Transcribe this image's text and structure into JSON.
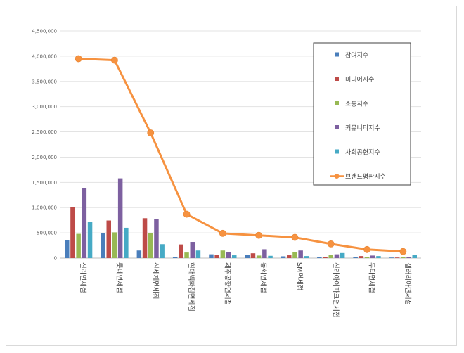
{
  "chart_data": {
    "type": "bar",
    "categories": [
      "신라면세점",
      "롯데면세점",
      "신세계면세점",
      "현대백화점면세점",
      "제주공항면세점",
      "동화면세점",
      "SM면세점",
      "신라아이파크면세점",
      "두타면세점",
      "갤러리아면세점"
    ],
    "series": [
      {
        "name": "참여지수",
        "kind": "bar",
        "color": "#4a7ebb",
        "values": [
          355000,
          490000,
          150000,
          20000,
          75000,
          60000,
          35000,
          20000,
          25000,
          10000
        ]
      },
      {
        "name": "미디어지수",
        "kind": "bar",
        "color": "#be4b48",
        "values": [
          1010000,
          745000,
          790000,
          270000,
          65000,
          95000,
          55000,
          25000,
          40000,
          10000
        ]
      },
      {
        "name": "소통지수",
        "kind": "bar",
        "color": "#98b954",
        "values": [
          480000,
          510000,
          500000,
          110000,
          150000,
          50000,
          120000,
          65000,
          25000,
          15000
        ]
      },
      {
        "name": "커뮤니티지수",
        "kind": "bar",
        "color": "#7d60a0",
        "values": [
          1390000,
          1580000,
          780000,
          320000,
          115000,
          175000,
          150000,
          75000,
          50000,
          20000
        ]
      },
      {
        "name": "사회공헌지수",
        "kind": "bar",
        "color": "#46aac5",
        "values": [
          720000,
          600000,
          275000,
          150000,
          55000,
          45000,
          40000,
          100000,
          40000,
          60000
        ]
      },
      {
        "name": "브랜드평판지수",
        "kind": "line",
        "color": "#f69240",
        "values": [
          3950000,
          3920000,
          2480000,
          870000,
          490000,
          450000,
          410000,
          280000,
          170000,
          130000
        ]
      }
    ],
    "y_ticks": [
      "0",
      "500,000",
      "1,000,000",
      "1,500,000",
      "2,000,000",
      "2,500,000",
      "3,000,000",
      "3,500,000",
      "4,000,000",
      "4,500,000"
    ],
    "ylim": [
      0,
      4500000
    ],
    "grid": true,
    "legend_position": "top-right"
  }
}
